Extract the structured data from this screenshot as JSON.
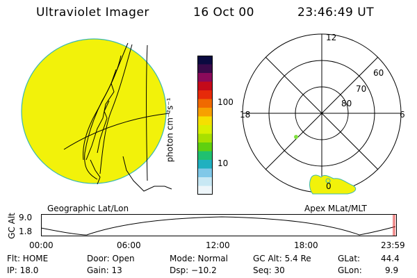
{
  "header": {
    "instrument": "Ultraviolet Imager",
    "date": "16 Oct 00",
    "time": "23:46:49 UT"
  },
  "colorbar": {
    "unit_label": "photon cm⁻²s⁻¹",
    "ticks": [
      "100",
      "10"
    ],
    "colors": [
      "#0a0a40",
      "#3a0a4a",
      "#8a0a5a",
      "#c40a1a",
      "#e62a0a",
      "#f06a00",
      "#f7a000",
      "#f5e000",
      "#d9f000",
      "#a8e000",
      "#60d010",
      "#20c070",
      "#20b0c0",
      "#80c8e8",
      "#c8e8f4",
      "#eef6fa"
    ]
  },
  "left_panel": {
    "caption": "Geographic Lat/Lon",
    "disk_color": "#f2f20a"
  },
  "right_panel": {
    "caption": "Apex MLat/MLT",
    "mlt_labels": {
      "top": "12",
      "left": "18",
      "right": "6",
      "bottom": "0"
    },
    "mlat_labels": [
      "60",
      "70",
      "80"
    ]
  },
  "timeline": {
    "axis_label": "GC Alt",
    "y_ticks": [
      "9.0",
      "1.8"
    ],
    "x_ticks": [
      "00:00",
      "06:00",
      "12:00",
      "18:00",
      "23:59"
    ]
  },
  "status": {
    "row1": [
      "Flt: HOME",
      "Door: Open",
      "Mode: Normal",
      "GC Alt: 5.4 Re",
      "GLat:",
      "44.4"
    ],
    "row2": [
      "IP: 18.0",
      "Gain: 13",
      "Dsp:  −10.2",
      "Seq: 30",
      "GLon:",
      "9.9"
    ]
  }
}
